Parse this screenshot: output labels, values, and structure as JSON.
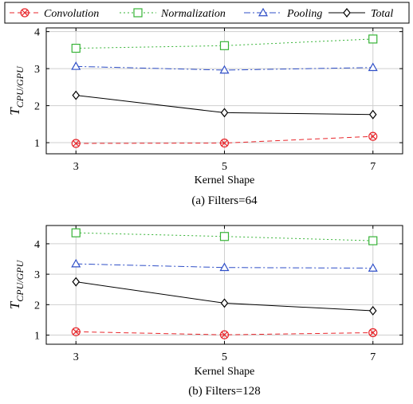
{
  "legend": {
    "entries": [
      {
        "name": "Convolution",
        "color": "#e8262b",
        "marker": "circle-x",
        "dash": "6,4"
      },
      {
        "name": "Normalization",
        "color": "#36b336",
        "marker": "square",
        "dash": "2,3"
      },
      {
        "name": "Pooling",
        "color": "#2f4fc7",
        "marker": "triangle",
        "dash": "8,3,2,3"
      },
      {
        "name": "Total",
        "color": "#000000",
        "marker": "diamond",
        "dash": ""
      }
    ]
  },
  "chart_data": [
    {
      "type": "line",
      "caption": "(a) Filters=64",
      "xlabel": "Kernel Shape",
      "ylabel": "T_CPU/GPU",
      "x": [
        3,
        5,
        7
      ],
      "xticks": [
        "3",
        "5",
        "7"
      ],
      "yticks": [
        "1",
        "2",
        "3",
        "4"
      ],
      "xlim": [
        2.6,
        7.4
      ],
      "ylim": [
        0.7,
        4.1
      ],
      "grid": true,
      "series": [
        {
          "name": "Convolution",
          "values": [
            0.98,
            0.99,
            1.17
          ]
        },
        {
          "name": "Normalization",
          "values": [
            3.55,
            3.62,
            3.8
          ]
        },
        {
          "name": "Pooling",
          "values": [
            3.06,
            2.96,
            3.03
          ]
        },
        {
          "name": "Total",
          "values": [
            2.28,
            1.81,
            1.76
          ]
        }
      ]
    },
    {
      "type": "line",
      "caption": "(b) Filters=128",
      "xlabel": "Kernel Shape",
      "ylabel": "T_CPU/GPU",
      "x": [
        3,
        5,
        7
      ],
      "xticks": [
        "3",
        "5",
        "7"
      ],
      "yticks": [
        "1",
        "2",
        "3",
        "4"
      ],
      "xlim": [
        2.6,
        7.4
      ],
      "ylim": [
        0.7,
        4.6
      ],
      "grid": true,
      "series": [
        {
          "name": "Convolution",
          "values": [
            1.11,
            1.01,
            1.08
          ]
        },
        {
          "name": "Normalization",
          "values": [
            4.36,
            4.24,
            4.1
          ]
        },
        {
          "name": "Pooling",
          "values": [
            3.34,
            3.22,
            3.2
          ]
        },
        {
          "name": "Total",
          "values": [
            2.75,
            2.05,
            1.8
          ]
        }
      ]
    }
  ]
}
